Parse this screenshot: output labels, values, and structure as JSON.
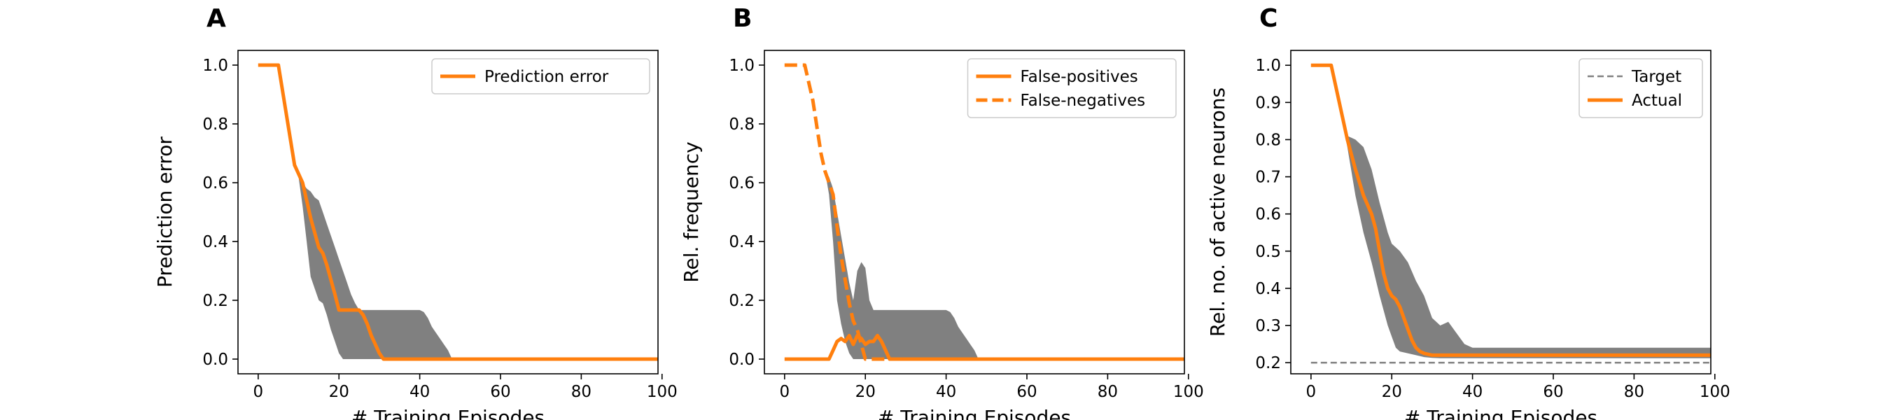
{
  "colors": {
    "orange": "#ff7f0e",
    "band": "#808080",
    "target": "#808080",
    "axis": "#000000"
  },
  "chart_data": [
    {
      "panel_letter": "A",
      "type": "line",
      "xlabel": "# Training Episodes",
      "ylabel": "Prediction error",
      "xlim": [
        -5,
        99
      ],
      "ylim": [
        -0.05,
        1.05
      ],
      "xticks": [
        0,
        20,
        40,
        60,
        80,
        100
      ],
      "yticks": [
        0.0,
        0.2,
        0.4,
        0.6,
        0.8,
        1.0
      ],
      "ytick_labels": [
        "0.0",
        "0.2",
        "0.4",
        "0.6",
        "0.8",
        "1.0"
      ],
      "legend_position": "upper right",
      "series": [
        {
          "name": "Prediction error",
          "style": "solid",
          "x": [
            0,
            5,
            9,
            11,
            13,
            15,
            16,
            17,
            18,
            19,
            20,
            21,
            24,
            25,
            26,
            27,
            28,
            29,
            30,
            31,
            32,
            40,
            60,
            80,
            99
          ],
          "y": [
            1.0,
            1.0,
            0.66,
            0.6,
            0.48,
            0.38,
            0.36,
            0.32,
            0.27,
            0.22,
            0.167,
            0.167,
            0.167,
            0.167,
            0.15,
            0.12,
            0.08,
            0.05,
            0.02,
            0.0,
            0.0,
            0.0,
            0.0,
            0.0,
            0.0
          ]
        }
      ],
      "bands": [
        {
          "x": [
            0,
            5,
            9,
            10,
            11,
            12,
            13,
            14,
            15,
            16,
            17,
            18,
            19,
            20,
            21,
            22,
            23,
            24,
            25,
            26,
            27,
            28,
            29,
            30,
            31,
            35,
            40,
            41,
            42,
            43,
            44,
            45,
            46,
            47,
            48,
            99
          ],
          "lower": [
            1.0,
            1.0,
            0.66,
            0.62,
            0.52,
            0.4,
            0.28,
            0.24,
            0.2,
            0.19,
            0.15,
            0.1,
            0.06,
            0.02,
            0.0,
            0.0,
            0.0,
            0.0,
            0.0,
            0.0,
            0.0,
            0.0,
            0.0,
            0.0,
            0.0,
            0.0,
            0.0,
            0.0,
            0.0,
            0.0,
            0.0,
            0.0,
            0.0,
            0.0,
            0.0,
            0.0
          ],
          "upper": [
            1.0,
            1.0,
            0.66,
            0.63,
            0.6,
            0.58,
            0.57,
            0.55,
            0.54,
            0.5,
            0.46,
            0.42,
            0.38,
            0.34,
            0.3,
            0.26,
            0.22,
            0.19,
            0.167,
            0.167,
            0.167,
            0.167,
            0.167,
            0.167,
            0.167,
            0.167,
            0.167,
            0.16,
            0.14,
            0.11,
            0.09,
            0.07,
            0.05,
            0.03,
            0.0,
            0.0
          ]
        }
      ]
    },
    {
      "panel_letter": "B",
      "type": "line",
      "xlabel": "# Training Episodes",
      "ylabel": "Rel. frequency",
      "xlim": [
        -5,
        99
      ],
      "ylim": [
        -0.05,
        1.05
      ],
      "xticks": [
        0,
        20,
        40,
        60,
        80,
        100
      ],
      "yticks": [
        0.0,
        0.2,
        0.4,
        0.6,
        0.8,
        1.0
      ],
      "ytick_labels": [
        "0.0",
        "0.2",
        "0.4",
        "0.6",
        "0.8",
        "1.0"
      ],
      "legend_position": "upper right",
      "series": [
        {
          "name": "False-positives",
          "style": "solid",
          "x": [
            0,
            11,
            12,
            13,
            14,
            15,
            16,
            17,
            18,
            19,
            20,
            21,
            22,
            23,
            24,
            25,
            26,
            27,
            28,
            40,
            60,
            80,
            99
          ],
          "y": [
            0.0,
            0.0,
            0.03,
            0.06,
            0.07,
            0.06,
            0.08,
            0.05,
            0.08,
            0.07,
            0.05,
            0.06,
            0.06,
            0.08,
            0.06,
            0.03,
            0.0,
            0.0,
            0.0,
            0.0,
            0.0,
            0.0,
            0.0
          ],
          "_note": ""
        },
        {
          "name": "False-negatives",
          "style": "dashed",
          "x": [
            0,
            5,
            7,
            9,
            10,
            12,
            13,
            14,
            15,
            16,
            17,
            18,
            19,
            20,
            21,
            40,
            60,
            80,
            99
          ],
          "y": [
            1.0,
            1.0,
            0.88,
            0.7,
            0.64,
            0.56,
            0.45,
            0.35,
            0.27,
            0.19,
            0.13,
            0.1,
            0.05,
            0.0,
            0.0,
            0.0,
            0.0,
            0.0,
            0.0
          ]
        }
      ],
      "bands": [
        {
          "x": [
            10,
            11,
            12,
            13,
            14,
            15,
            16,
            17,
            18,
            19,
            20,
            21,
            22,
            23,
            24,
            25,
            30,
            35,
            40,
            41,
            42,
            43,
            44,
            45,
            46,
            47,
            48,
            99
          ],
          "lower": [
            0.64,
            0.56,
            0.4,
            0.2,
            0.12,
            0.06,
            0.02,
            0.0,
            0.0,
            0.0,
            0.0,
            0.0,
            0.0,
            0.0,
            0.0,
            0.0,
            0.0,
            0.0,
            0.0,
            0.0,
            0.0,
            0.0,
            0.0,
            0.0,
            0.0,
            0.0,
            0.0,
            0.0
          ],
          "upper": [
            0.64,
            0.62,
            0.58,
            0.5,
            0.42,
            0.34,
            0.26,
            0.2,
            0.3,
            0.33,
            0.31,
            0.2,
            0.167,
            0.167,
            0.167,
            0.167,
            0.167,
            0.167,
            0.167,
            0.16,
            0.14,
            0.11,
            0.09,
            0.07,
            0.05,
            0.03,
            0.0,
            0.0
          ]
        }
      ]
    },
    {
      "panel_letter": "C",
      "type": "line",
      "xlabel": "# Training Episodes",
      "ylabel": "Rel. no. of active neurons",
      "xlim": [
        -5,
        99
      ],
      "ylim": [
        0.17,
        1.04
      ],
      "xticks": [
        0,
        20,
        40,
        60,
        80,
        100
      ],
      "yticks": [
        0.2,
        0.3,
        0.4,
        0.5,
        0.6,
        0.7,
        0.8,
        0.9,
        1.0
      ],
      "ytick_labels": [
        "0.2",
        "0.3",
        "0.4",
        "0.5",
        "0.6",
        "0.7",
        "0.8",
        "0.9",
        "1.0"
      ],
      "legend_position": "upper right",
      "series": [
        {
          "name": "Target",
          "style": "dashed-thin",
          "x": [
            0,
            99
          ],
          "y": [
            0.2,
            0.2
          ]
        },
        {
          "name": "Actual",
          "style": "solid",
          "x": [
            0,
            5,
            9,
            11,
            13,
            15,
            16,
            17,
            18,
            19,
            20,
            21,
            22,
            23,
            24,
            25,
            26,
            27,
            28,
            30,
            32,
            35,
            40,
            60,
            80,
            99
          ],
          "y": [
            1.0,
            1.0,
            0.8,
            0.72,
            0.65,
            0.6,
            0.56,
            0.5,
            0.44,
            0.4,
            0.38,
            0.37,
            0.35,
            0.32,
            0.29,
            0.26,
            0.24,
            0.23,
            0.225,
            0.22,
            0.22,
            0.22,
            0.22,
            0.22,
            0.22,
            0.22
          ]
        }
      ],
      "bands": [
        {
          "x": [
            0,
            5,
            9,
            11,
            13,
            15,
            17,
            19,
            20,
            21,
            22,
            24,
            26,
            28,
            30,
            32,
            34,
            36,
            38,
            40,
            60,
            80,
            99
          ],
          "lower": [
            1.0,
            1.0,
            0.78,
            0.65,
            0.55,
            0.47,
            0.38,
            0.3,
            0.27,
            0.24,
            0.23,
            0.225,
            0.22,
            0.215,
            0.213,
            0.212,
            0.212,
            0.212,
            0.212,
            0.212,
            0.212,
            0.212,
            0.212
          ],
          "upper": [
            1.0,
            1.0,
            0.81,
            0.8,
            0.78,
            0.72,
            0.63,
            0.55,
            0.52,
            0.51,
            0.5,
            0.47,
            0.42,
            0.38,
            0.32,
            0.3,
            0.31,
            0.28,
            0.25,
            0.24,
            0.24,
            0.24,
            0.24
          ]
        }
      ]
    }
  ]
}
